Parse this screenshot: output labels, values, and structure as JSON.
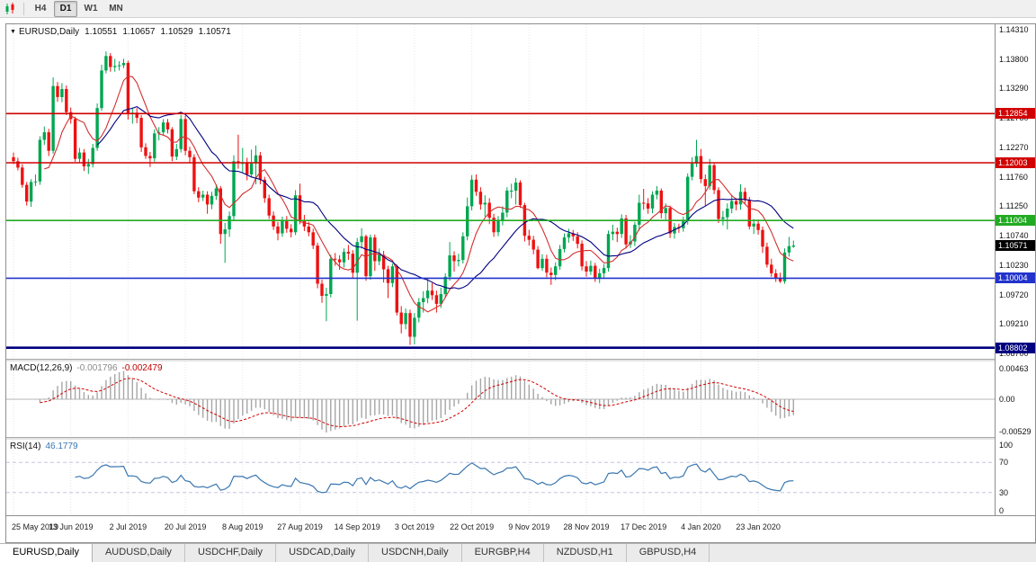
{
  "toolbar": {
    "timeframes": [
      {
        "label": "H4",
        "active": false
      },
      {
        "label": "D1",
        "active": true
      },
      {
        "label": "W1",
        "active": false
      },
      {
        "label": "MN",
        "active": false
      }
    ]
  },
  "tabs": [
    {
      "label": "EURUSD,Daily",
      "active": true
    },
    {
      "label": "AUDUSD,Daily",
      "active": false
    },
    {
      "label": "USDCHF,Daily",
      "active": false
    },
    {
      "label": "USDCAD,Daily",
      "active": false
    },
    {
      "label": "USDCNH,Daily",
      "active": false
    },
    {
      "label": "EURGBP,H4",
      "active": false
    },
    {
      "label": "NZDUSD,H1",
      "active": false
    },
    {
      "label": "GBPUSD,H4",
      "active": false
    }
  ],
  "chart_data": {
    "type": "candlestick",
    "symbol": "EURUSD",
    "timeframe": "Daily",
    "header": {
      "symbol_period": "EURUSD,Daily",
      "open": "1.10551",
      "high": "1.10657",
      "low": "1.10529",
      "close": "1.10571"
    },
    "price_range": {
      "top": 1.144,
      "bottom": 1.0861
    },
    "axis_ticks": [
      "1.14310",
      "1.13800",
      "1.13290",
      "1.12780",
      "1.12270",
      "1.11760",
      "1.11250",
      "1.10740",
      "1.10230",
      "1.09720",
      "1.09210",
      "1.08700"
    ],
    "levels": [
      {
        "label": "1.12854",
        "value": 1.12854,
        "color": "#d10000",
        "width": 1.6
      },
      {
        "label": "1.12003",
        "value": 1.12003,
        "color": "#d10000",
        "width": 1.6
      },
      {
        "label": "1.11004",
        "value": 1.11004,
        "color": "#22aa22",
        "width": 1.6
      },
      {
        "label": "1.10004",
        "value": 1.10004,
        "color": "#2233cc",
        "width": 1.6
      },
      {
        "label": "1.08802",
        "value": 1.08802,
        "color": "#000080",
        "width": 2.6
      }
    ],
    "current_price": {
      "label": "1.10571",
      "value": 1.10571,
      "bg": "#000000"
    },
    "x_labels": [
      "25 May 2019",
      "13 Jun 2019",
      "2 Jul 2019",
      "20 Jul 2019",
      "8 Aug 2019",
      "27 Aug 2019",
      "14 Sep 2019",
      "3 Oct 2019",
      "22 Oct 2019",
      "9 Nov 2019",
      "28 Nov 2019",
      "17 Dec 2019",
      "4 Jan 2020",
      "23 Jan 2020"
    ],
    "bars_per_label": 13,
    "colors": {
      "up": "#00a651",
      "down": "#ee1111",
      "grid": "#e6e6e6",
      "ma_fast": "#d32f2f",
      "ma_slow": "#000080",
      "macd_hist": "#a6a6a6",
      "macd_signal": "#d40000",
      "macd_zero": "#b4b4b4",
      "rsi_line": "#3a76af",
      "rsi_level": "#c6c6e0"
    },
    "overlays": [
      {
        "name": "ma-fast",
        "period": 8,
        "colorKey": "ma_fast"
      },
      {
        "name": "ma-slow",
        "period": 20,
        "colorKey": "ma_slow"
      }
    ],
    "indicators": {
      "macd": {
        "label": "MACD(12,26,9)",
        "fast": 12,
        "slow": 26,
        "signal": 9,
        "value_main": "-0.001796",
        "value_signal": "-0.002479",
        "axis_labels": [
          "0.00463",
          "0.00",
          "-0.00529"
        ]
      },
      "rsi": {
        "label": "RSI(14)",
        "period": 14,
        "value": "46.1779",
        "axis_labels": [
          "100",
          "70",
          "30",
          "0"
        ],
        "levels": [
          70,
          30
        ]
      }
    },
    "candles": [
      [
        1.121,
        1.1218,
        1.1198,
        1.1203
      ],
      [
        1.1203,
        1.1209,
        1.1187,
        1.1192
      ],
      [
        1.1192,
        1.1198,
        1.1157,
        1.1162
      ],
      [
        1.1162,
        1.1167,
        1.1126,
        1.1133
      ],
      [
        1.1133,
        1.1172,
        1.1124,
        1.1167
      ],
      [
        1.1167,
        1.118,
        1.116,
        1.1168
      ],
      [
        1.1168,
        1.1246,
        1.1162,
        1.124
      ],
      [
        1.124,
        1.1263,
        1.1231,
        1.1253
      ],
      [
        1.1253,
        1.1259,
        1.1212,
        1.1221
      ],
      [
        1.1221,
        1.1348,
        1.1216,
        1.1333
      ],
      [
        1.1333,
        1.134,
        1.1306,
        1.1314
      ],
      [
        1.1314,
        1.1338,
        1.1305,
        1.1328
      ],
      [
        1.1328,
        1.1334,
        1.1283,
        1.1288
      ],
      [
        1.1288,
        1.1296,
        1.1268,
        1.1276
      ],
      [
        1.1276,
        1.128,
        1.1202,
        1.1207
      ],
      [
        1.1207,
        1.1226,
        1.12,
        1.1218
      ],
      [
        1.1218,
        1.1224,
        1.1186,
        1.1194
      ],
      [
        1.1194,
        1.1207,
        1.1181,
        1.1198
      ],
      [
        1.1198,
        1.1233,
        1.1192,
        1.1226
      ],
      [
        1.1226,
        1.1303,
        1.1221,
        1.1295
      ],
      [
        1.1295,
        1.137,
        1.129,
        1.136
      ],
      [
        1.136,
        1.1393,
        1.1355,
        1.1385
      ],
      [
        1.1385,
        1.139,
        1.1358,
        1.1366
      ],
      [
        1.1366,
        1.138,
        1.1358,
        1.1368
      ],
      [
        1.1368,
        1.1376,
        1.136,
        1.1369
      ],
      [
        1.1369,
        1.138,
        1.1364,
        1.1373
      ],
      [
        1.1373,
        1.1377,
        1.1275,
        1.1285
      ],
      [
        1.1285,
        1.1296,
        1.1268,
        1.1287
      ],
      [
        1.1287,
        1.1295,
        1.1269,
        1.1278
      ],
      [
        1.1278,
        1.1283,
        1.1219,
        1.1227
      ],
      [
        1.1227,
        1.1234,
        1.1207,
        1.1212
      ],
      [
        1.1212,
        1.1219,
        1.1193,
        1.1208
      ],
      [
        1.1208,
        1.1258,
        1.1202,
        1.1251
      ],
      [
        1.1251,
        1.1262,
        1.1239,
        1.1253
      ],
      [
        1.1253,
        1.1276,
        1.1247,
        1.127
      ],
      [
        1.127,
        1.1276,
        1.1251,
        1.1258
      ],
      [
        1.1258,
        1.1262,
        1.1203,
        1.1211
      ],
      [
        1.1211,
        1.1233,
        1.1205,
        1.1224
      ],
      [
        1.1224,
        1.1283,
        1.1218,
        1.1276
      ],
      [
        1.1276,
        1.1282,
        1.1213,
        1.1221
      ],
      [
        1.1221,
        1.1228,
        1.1201,
        1.121
      ],
      [
        1.121,
        1.1215,
        1.1146,
        1.1151
      ],
      [
        1.1151,
        1.1158,
        1.1132,
        1.114
      ],
      [
        1.114,
        1.1152,
        1.1134,
        1.1145
      ],
      [
        1.1145,
        1.1151,
        1.1112,
        1.1128
      ],
      [
        1.1128,
        1.115,
        1.112,
        1.1143
      ],
      [
        1.1143,
        1.1163,
        1.1136,
        1.1156
      ],
      [
        1.1156,
        1.116,
        1.106,
        1.1077
      ],
      [
        1.1077,
        1.1096,
        1.1027,
        1.1085
      ],
      [
        1.1085,
        1.1116,
        1.1072,
        1.1108
      ],
      [
        1.1108,
        1.1213,
        1.1101,
        1.1203
      ],
      [
        1.1203,
        1.1249,
        1.119,
        1.12
      ],
      [
        1.12,
        1.1226,
        1.1184,
        1.12
      ],
      [
        1.12,
        1.1209,
        1.117,
        1.118
      ],
      [
        1.118,
        1.1223,
        1.1175,
        1.1199
      ],
      [
        1.1199,
        1.123,
        1.1163,
        1.1213
      ],
      [
        1.1213,
        1.1219,
        1.1163,
        1.1171
      ],
      [
        1.1171,
        1.1176,
        1.1131,
        1.1139
      ],
      [
        1.1139,
        1.1145,
        1.1103,
        1.1109
      ],
      [
        1.1109,
        1.1116,
        1.1084,
        1.109
      ],
      [
        1.109,
        1.1098,
        1.1066,
        1.1078
      ],
      [
        1.1078,
        1.1107,
        1.1072,
        1.11
      ],
      [
        1.11,
        1.1108,
        1.1079,
        1.1086
      ],
      [
        1.1086,
        1.1094,
        1.1071,
        1.108
      ],
      [
        1.108,
        1.1153,
        1.1075,
        1.1144
      ],
      [
        1.1144,
        1.1164,
        1.1094,
        1.1101
      ],
      [
        1.1101,
        1.111,
        1.1082,
        1.109
      ],
      [
        1.109,
        1.1098,
        1.1073,
        1.108
      ],
      [
        1.108,
        1.1086,
        1.1051,
        1.1057
      ],
      [
        1.1057,
        1.1062,
        1.0983,
        1.0991
      ],
      [
        1.0991,
        1.0998,
        1.0958,
        1.097
      ],
      [
        1.097,
        1.0984,
        1.0926,
        1.0973
      ],
      [
        1.0973,
        1.1041,
        1.0967,
        1.1034
      ],
      [
        1.1034,
        1.1044,
        1.1022,
        1.1033
      ],
      [
        1.1033,
        1.104,
        1.1015,
        1.1028
      ],
      [
        1.1028,
        1.1052,
        1.1019,
        1.1046
      ],
      [
        1.1046,
        1.1058,
        1.1032,
        1.1043
      ],
      [
        1.1043,
        1.1049,
        1.1001,
        1.101
      ],
      [
        1.101,
        1.107,
        1.0927,
        1.1063
      ],
      [
        1.1063,
        1.1087,
        1.1052,
        1.1073
      ],
      [
        1.1073,
        1.1076,
        1.0996,
        1.1004
      ],
      [
        1.1004,
        1.1076,
        1.0998,
        1.1071
      ],
      [
        1.1071,
        1.1076,
        1.1013,
        1.103
      ],
      [
        1.103,
        1.1052,
        1.1023,
        1.1041
      ],
      [
        1.1041,
        1.1048,
        1.0993,
        1.1016
      ],
      [
        1.1016,
        1.1022,
        1.0966,
        1.0992
      ],
      [
        1.0992,
        1.1026,
        1.0985,
        1.1021
      ],
      [
        1.1021,
        1.1024,
        1.0936,
        1.0941
      ],
      [
        1.0941,
        1.0952,
        1.0905,
        1.0921
      ],
      [
        1.0921,
        1.0948,
        1.0912,
        1.094
      ],
      [
        1.094,
        1.0946,
        1.0885,
        1.0899
      ],
      [
        1.0899,
        1.094,
        1.0886,
        1.0932
      ],
      [
        1.0932,
        1.0966,
        1.0924,
        1.0959
      ],
      [
        1.0959,
        1.0978,
        1.0941,
        1.0966
      ],
      [
        1.0966,
        1.0999,
        1.0957,
        1.0979
      ],
      [
        1.0979,
        1.0992,
        1.0963,
        1.0971
      ],
      [
        1.0971,
        1.0979,
        1.0941,
        1.0956
      ],
      [
        1.0956,
        1.0984,
        1.0949,
        1.0973
      ],
      [
        1.0973,
        1.1009,
        1.0967,
        1.1003
      ],
      [
        1.1003,
        1.1063,
        1.0996,
        1.104
      ],
      [
        1.104,
        1.1047,
        1.1012,
        1.103
      ],
      [
        1.103,
        1.1043,
        1.1021,
        1.1032
      ],
      [
        1.1032,
        1.108,
        1.1026,
        1.1073
      ],
      [
        1.1073,
        1.114,
        1.1066,
        1.1125
      ],
      [
        1.1125,
        1.1179,
        1.1118,
        1.1171
      ],
      [
        1.1171,
        1.118,
        1.1143,
        1.115
      ],
      [
        1.115,
        1.1158,
        1.1119,
        1.1128
      ],
      [
        1.1128,
        1.1144,
        1.1107,
        1.1131
      ],
      [
        1.1131,
        1.1139,
        1.1094,
        1.1105
      ],
      [
        1.1105,
        1.1112,
        1.1072,
        1.108
      ],
      [
        1.108,
        1.1108,
        1.1073,
        1.11
      ],
      [
        1.11,
        1.1125,
        1.1092,
        1.1114
      ],
      [
        1.1114,
        1.1158,
        1.1106,
        1.1152
      ],
      [
        1.1152,
        1.1164,
        1.1139,
        1.1152
      ],
      [
        1.1152,
        1.1174,
        1.1128,
        1.1166
      ],
      [
        1.1166,
        1.117,
        1.1122,
        1.1127
      ],
      [
        1.1127,
        1.1131,
        1.1064,
        1.1074
      ],
      [
        1.1074,
        1.1084,
        1.1057,
        1.1067
      ],
      [
        1.1067,
        1.1074,
        1.1042,
        1.105
      ],
      [
        1.105,
        1.1056,
        1.1016,
        1.1018
      ],
      [
        1.1018,
        1.1042,
        1.1013,
        1.1034
      ],
      [
        1.1034,
        1.1041,
        1.1002,
        1.101
      ],
      [
        1.101,
        1.1019,
        1.0989,
        1.1006
      ],
      [
        1.1006,
        1.1028,
        1.0997,
        1.1021
      ],
      [
        1.1021,
        1.1058,
        1.1015,
        1.1051
      ],
      [
        1.1051,
        1.1078,
        1.1045,
        1.1071
      ],
      [
        1.1071,
        1.1086,
        1.1062,
        1.1078
      ],
      [
        1.1078,
        1.1084,
        1.1065,
        1.1073
      ],
      [
        1.1073,
        1.108,
        1.1052,
        1.106
      ],
      [
        1.106,
        1.1066,
        1.1014,
        1.1021
      ],
      [
        1.1021,
        1.103,
        1.1003,
        1.1012
      ],
      [
        1.1012,
        1.1031,
        1.1006,
        1.1022
      ],
      [
        1.1022,
        1.1027,
        1.0994,
        1.1001
      ],
      [
        1.1001,
        1.1017,
        1.0992,
        1.1009
      ],
      [
        1.1009,
        1.1025,
        1.1001,
        1.1018
      ],
      [
        1.1018,
        1.1083,
        1.1012,
        1.1077
      ],
      [
        1.1077,
        1.1093,
        1.1066,
        1.1081
      ],
      [
        1.1081,
        1.1088,
        1.1063,
        1.1077
      ],
      [
        1.1077,
        1.1111,
        1.107,
        1.1104
      ],
      [
        1.1104,
        1.111,
        1.1052,
        1.1059
      ],
      [
        1.1059,
        1.1075,
        1.1053,
        1.1064
      ],
      [
        1.1064,
        1.1098,
        1.1056,
        1.1093
      ],
      [
        1.1093,
        1.1145,
        1.1083,
        1.1131
      ],
      [
        1.1131,
        1.1155,
        1.1119,
        1.113
      ],
      [
        1.113,
        1.1139,
        1.1112,
        1.1121
      ],
      [
        1.1121,
        1.1151,
        1.1113,
        1.1145
      ],
      [
        1.1145,
        1.116,
        1.1137,
        1.1152
      ],
      [
        1.1152,
        1.1156,
        1.1104,
        1.1113
      ],
      [
        1.1113,
        1.113,
        1.1102,
        1.1122
      ],
      [
        1.1122,
        1.1126,
        1.107,
        1.1078
      ],
      [
        1.1078,
        1.1096,
        1.1069,
        1.1089
      ],
      [
        1.1089,
        1.1095,
        1.1079,
        1.1087
      ],
      [
        1.1087,
        1.1107,
        1.1081,
        1.1099
      ],
      [
        1.1099,
        1.1182,
        1.1093,
        1.1176
      ],
      [
        1.1176,
        1.121,
        1.117,
        1.1199
      ],
      [
        1.1199,
        1.124,
        1.1193,
        1.1212
      ],
      [
        1.1212,
        1.1224,
        1.1165,
        1.1172
      ],
      [
        1.1172,
        1.118,
        1.1125,
        1.116
      ],
      [
        1.116,
        1.1207,
        1.1154,
        1.1196
      ],
      [
        1.1196,
        1.1199,
        1.1146,
        1.1153
      ],
      [
        1.1153,
        1.1158,
        1.1096,
        1.1103
      ],
      [
        1.1103,
        1.1117,
        1.1092,
        1.1106
      ],
      [
        1.1106,
        1.113,
        1.1085,
        1.1121
      ],
      [
        1.1121,
        1.1145,
        1.1113,
        1.1134
      ],
      [
        1.1134,
        1.1139,
        1.1118,
        1.1128
      ],
      [
        1.1128,
        1.1163,
        1.1119,
        1.115
      ],
      [
        1.115,
        1.1157,
        1.1128,
        1.1136
      ],
      [
        1.1136,
        1.1141,
        1.1085,
        1.109
      ],
      [
        1.109,
        1.1103,
        1.1077,
        1.1095
      ],
      [
        1.1095,
        1.1102,
        1.1076,
        1.1084
      ],
      [
        1.1084,
        1.109,
        1.1044,
        1.1055
      ],
      [
        1.1055,
        1.1062,
        1.1019,
        1.1024
      ],
      [
        1.1024,
        1.1034,
        1.1003,
        1.1009
      ],
      [
        1.1009,
        1.1016,
        1.0994,
        1.1
      ],
      [
        1.1,
        1.101,
        1.0992,
        1.0995
      ],
      [
        1.0995,
        1.1052,
        1.0991,
        1.1045
      ],
      [
        1.1045,
        1.1072,
        1.1038,
        1.1056
      ],
      [
        1.10551,
        1.10657,
        1.10529,
        1.10571
      ]
    ]
  }
}
